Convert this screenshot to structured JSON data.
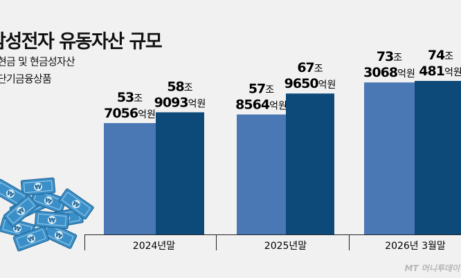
{
  "title": "삼성전자 유동자산 규모",
  "legend": [
    {
      "label": "현금 및 현금성자산",
      "color": "#4a78b4"
    },
    {
      "label": "단기금융상품",
      "color": "#0e4a79"
    }
  ],
  "watermark": "MT 머니투데이",
  "colors": {
    "background": "#f1f1f1",
    "axis": "#222222"
  },
  "chart_data": {
    "type": "bar",
    "title": "삼성전자 유동자산 규모",
    "categories": [
      "2024년말",
      "2025년말",
      "2026년 3월말"
    ],
    "unit": "원",
    "series": [
      {
        "name": "현금 및 현금성자산",
        "values": [
          537056,
          578564,
          733068
        ],
        "labels": [
          {
            "big1": "53",
            "small1": "조",
            "big2": "7056",
            "small2": "억원"
          },
          {
            "big1": "57",
            "small1": "조",
            "big2": "8564",
            "small2": "억원"
          },
          {
            "big1": "73",
            "small1": "조",
            "big2": "3068",
            "small2": "억원"
          }
        ]
      },
      {
        "name": "단기금융상품",
        "values": [
          589093,
          679650,
          740481
        ],
        "labels": [
          {
            "big1": "58",
            "small1": "조",
            "big2": "9093",
            "small2": "억원"
          },
          {
            "big1": "67",
            "small1": "조",
            "big2": "9650",
            "small2": "억원"
          },
          {
            "big1": "74",
            "small1": "조",
            "big2": "481",
            "small2": "억원"
          }
        ]
      }
    ],
    "grid": false,
    "legend_position": "top-left"
  }
}
